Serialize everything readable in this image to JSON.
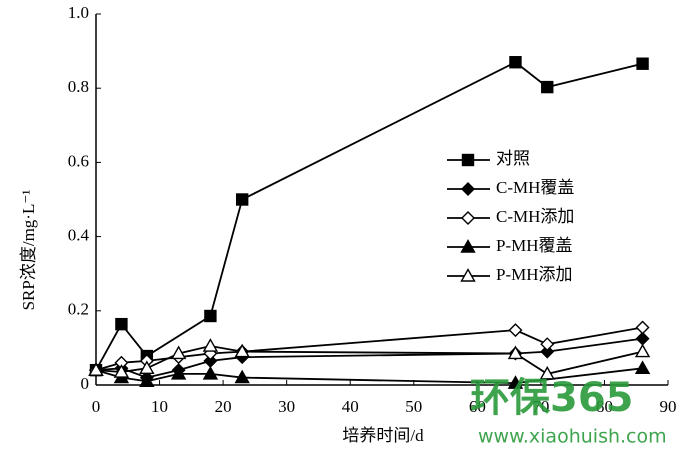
{
  "chart_data": {
    "type": "line",
    "xlabel": "培养时间/d",
    "ylabel": "SRP浓度/mg·L⁻¹",
    "xlim": [
      0,
      90
    ],
    "xticks": [
      0,
      10,
      20,
      30,
      40,
      50,
      60,
      70,
      80,
      90
    ],
    "ylim": [
      0,
      1
    ],
    "yticks": [
      0,
      0.2,
      0.4,
      0.6,
      0.8,
      {
        "value": 1,
        "label": "1.0"
      }
    ],
    "series": [
      {
        "name": "对照",
        "color": "#000000",
        "marker": "square",
        "filled": true,
        "x": [
          0,
          4,
          8,
          18,
          23,
          66,
          71,
          86
        ],
        "values": [
          0.04,
          0.164,
          0.078,
          0.186,
          0.5,
          0.87,
          0.803,
          0.866
        ]
      },
      {
        "name": "C-MH覆盖",
        "color": "#000000",
        "marker": "diamond",
        "filled": true,
        "x": [
          0,
          4,
          8,
          13,
          18,
          23,
          66,
          71,
          86
        ],
        "values": [
          0.04,
          0.045,
          0.02,
          0.04,
          0.065,
          0.075,
          0.085,
          0.09,
          0.125
        ]
      },
      {
        "name": "C-MH添加",
        "color": "#000000",
        "marker": "diamond",
        "filled": false,
        "x": [
          0,
          4,
          8,
          13,
          18,
          23,
          66,
          71,
          86
        ],
        "values": [
          0.04,
          0.06,
          0.065,
          0.075,
          0.085,
          0.09,
          0.148,
          0.11,
          0.155
        ]
      },
      {
        "name": "P-MH覆盖",
        "color": "#000000",
        "marker": "triangle",
        "filled": true,
        "x": [
          0,
          4,
          8,
          13,
          18,
          23,
          66,
          86
        ],
        "values": [
          0.04,
          0.02,
          0.01,
          0.03,
          0.03,
          0.02,
          0.005,
          0.045
        ]
      },
      {
        "name": "P-MH添加",
        "color": "#000000",
        "marker": "triangle",
        "filled": false,
        "x": [
          0,
          4,
          8,
          13,
          18,
          23,
          66,
          71,
          86
        ],
        "values": [
          0.04,
          0.035,
          0.045,
          0.085,
          0.105,
          0.09,
          0.085,
          0.03,
          0.09
        ]
      }
    ]
  },
  "watermark": {
    "brand": "环保365",
    "url": "www.xiaohuish.com"
  }
}
